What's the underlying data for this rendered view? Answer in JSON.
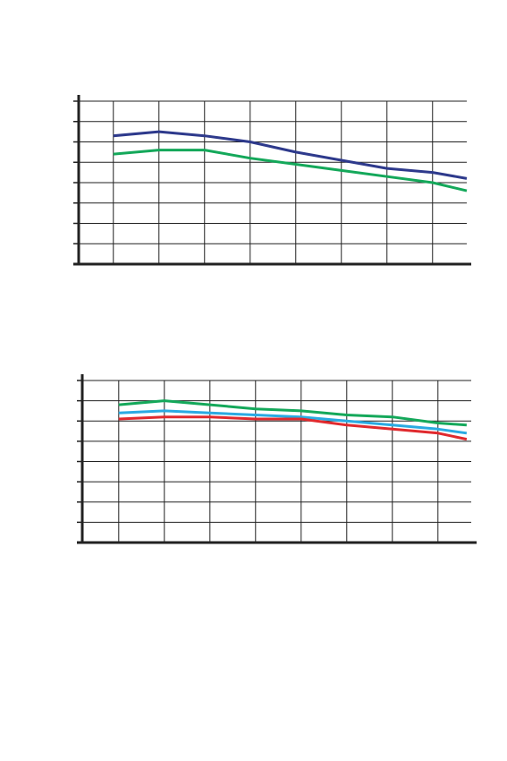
{
  "chart_data": [
    {
      "type": "line",
      "x": [
        1,
        2,
        3,
        4,
        5,
        6,
        7,
        8,
        8.75
      ],
      "xlim": [
        0.24,
        8.75
      ],
      "xticks": [
        1,
        2,
        3,
        4,
        5,
        6,
        7,
        8
      ],
      "ylim": [
        0,
        8
      ],
      "yticks": [
        0,
        1,
        2,
        3,
        4,
        5,
        6,
        7,
        8
      ],
      "grid": true,
      "series": [
        {
          "color": "#2e3a8c",
          "values": [
            6.3,
            6.5,
            6.3,
            6.0,
            5.5,
            5.1,
            4.7,
            4.5,
            4.2
          ]
        },
        {
          "color": "#14a85a",
          "values": [
            5.4,
            5.6,
            5.6,
            5.2,
            4.9,
            4.6,
            4.3,
            4.0,
            3.6
          ]
        }
      ]
    },
    {
      "type": "line",
      "x": [
        1,
        2,
        3,
        4,
        5,
        6,
        7,
        8,
        8.63
      ],
      "xlim": [
        0.2,
        8.73
      ],
      "xticks": [
        1,
        2,
        3,
        4,
        5,
        6,
        7,
        8
      ],
      "ylim": [
        0,
        8
      ],
      "yticks": [
        0,
        1,
        2,
        3,
        4,
        5,
        6,
        7,
        8
      ],
      "grid": true,
      "series": [
        {
          "color": "#14a85a",
          "values": [
            6.8,
            7.0,
            6.8,
            6.6,
            6.5,
            6.3,
            6.2,
            5.9,
            5.8
          ]
        },
        {
          "color": "#2aaae2",
          "values": [
            6.4,
            6.5,
            6.4,
            6.3,
            6.2,
            6.0,
            5.8,
            5.6,
            5.4
          ]
        },
        {
          "color": "#e02a2e",
          "values": [
            6.1,
            6.2,
            6.2,
            6.1,
            6.1,
            5.8,
            5.6,
            5.4,
            5.1
          ]
        }
      ]
    }
  ]
}
